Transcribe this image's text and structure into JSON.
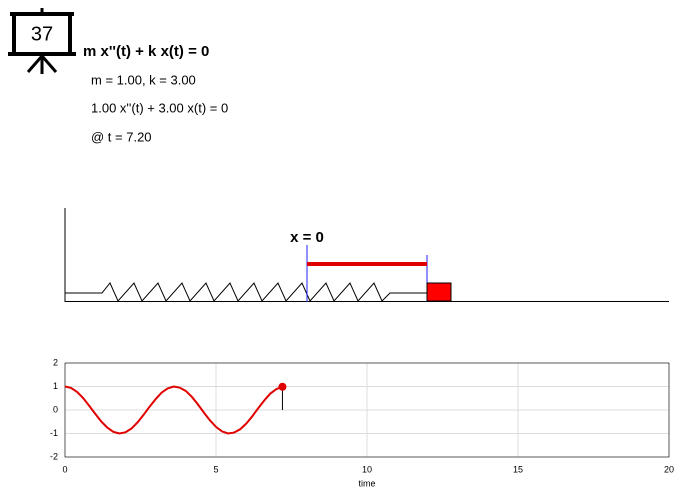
{
  "header": {
    "icon_label": "37",
    "equation": "m x''(t) + k x(t) = 0",
    "parameters": "m = 1.00, k = 3.00",
    "equation_numeric": "1.00 x''(t) + 3.00 x(t) = 0",
    "time": "@ t = 7.20"
  },
  "diagram": {
    "origin_label": "x = 0"
  },
  "chart_data": {
    "type": "line",
    "xlabel": "time",
    "x": [
      0,
      0.2,
      0.4,
      0.6,
      0.8,
      1.0,
      1.2,
      1.4,
      1.6,
      1.8,
      2.0,
      2.2,
      2.4,
      2.6,
      2.8,
      3.0,
      3.2,
      3.4,
      3.6,
      3.8,
      4.0,
      4.2,
      4.4,
      4.6,
      4.8,
      5.0,
      5.2,
      5.4,
      5.6,
      5.8,
      6.0,
      6.2,
      6.4,
      6.6,
      6.8,
      7.0,
      7.2
    ],
    "series": [
      {
        "color": "#e00000",
        "values": [
          1.0,
          0.94,
          0.77,
          0.51,
          0.18,
          -0.16,
          -0.49,
          -0.75,
          -0.93,
          -1.0,
          -0.95,
          -0.79,
          -0.53,
          -0.21,
          0.14,
          0.46,
          0.74,
          0.92,
          1.0,
          0.95,
          0.81,
          0.56,
          0.24,
          -0.11,
          -0.44,
          -0.72,
          -0.91,
          -1.0,
          -0.96,
          -0.82,
          -0.58,
          -0.27,
          0.08,
          0.41,
          0.7,
          0.89,
          0.99
        ]
      }
    ],
    "xlim": [
      0,
      20
    ],
    "ylim": [
      -2,
      2
    ],
    "xticks": [
      0,
      5,
      10,
      15,
      20
    ],
    "yticks": [
      -2,
      -1,
      0,
      1,
      2
    ],
    "grid": true
  }
}
